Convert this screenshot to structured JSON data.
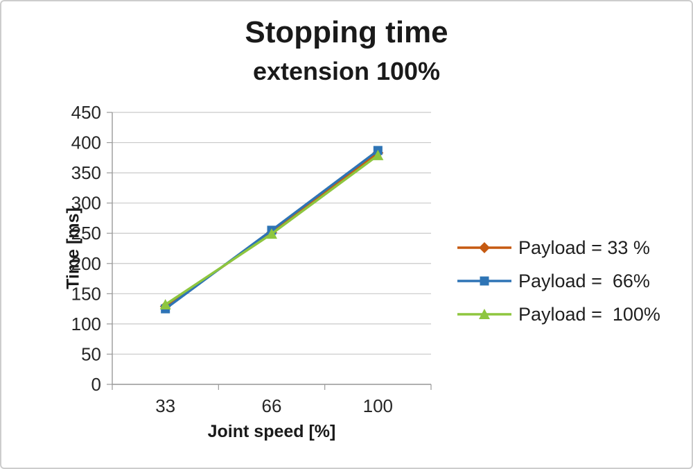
{
  "title": "Stopping time",
  "subtitle": "extension 100%",
  "colors": {
    "grid": "#c9c9c9",
    "axis": "#9a9a9a",
    "text": "#262626"
  },
  "chart_data": {
    "type": "line",
    "x": [
      33,
      66,
      100
    ],
    "x_tick_labels": [
      "33",
      "66",
      "100"
    ],
    "xlabel": "Joint speed [%]",
    "ylabel": "Time [ms]",
    "ylim": [
      0,
      450
    ],
    "ytick_step": 50,
    "grid": true,
    "legend_position": "right",
    "series": [
      {
        "name": "Payload = 33 %",
        "marker": "diamond",
        "color": "#c55a11",
        "values": [
          129,
          251,
          383
        ]
      },
      {
        "name": "Payload =  66%",
        "marker": "square",
        "color": "#2e74b5",
        "values": [
          125,
          255,
          387
        ]
      },
      {
        "name": "Payload =  100%",
        "marker": "triangle",
        "color": "#8ec63f",
        "values": [
          132,
          249,
          379
        ]
      }
    ]
  }
}
